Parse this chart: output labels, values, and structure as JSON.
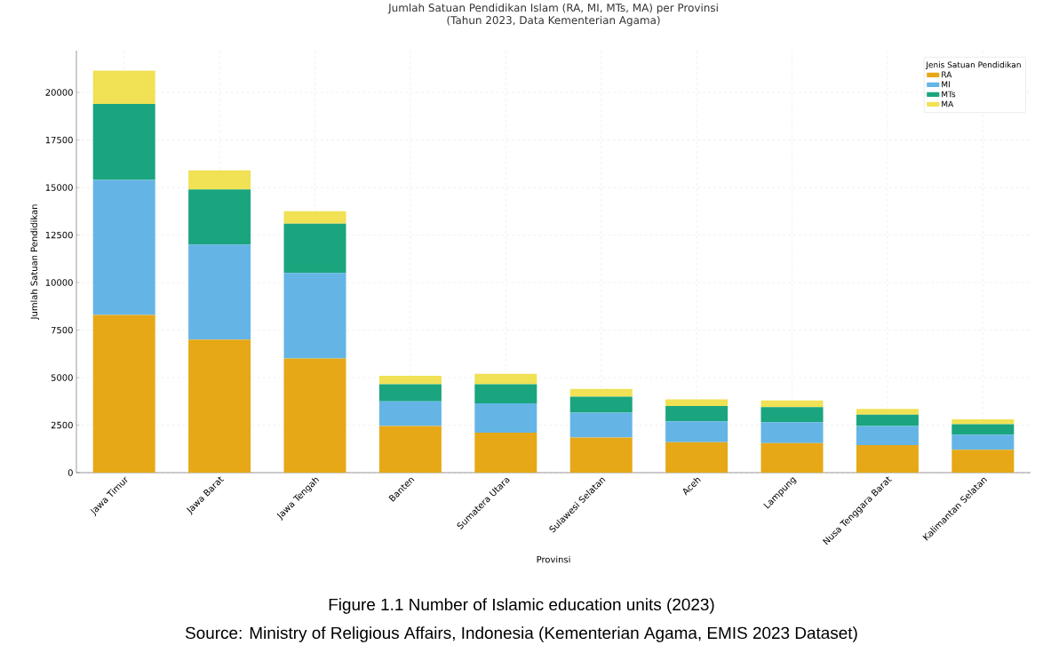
{
  "chart_data": {
    "type": "bar",
    "stacked": true,
    "title": "Jumlah Satuan Pendidikan Islam (RA, MI, MTs, MA) per Provinsi",
    "subtitle": "(Tahun 2023, Data Kementerian Agama)",
    "xlabel": "Provinsi",
    "ylabel": "Jumlah Satuan Pendidikan",
    "legend_title": "Jenis Satuan Pendidikan",
    "categories": [
      "Jawa Timur",
      "Jawa Barat",
      "Jawa Tengah",
      "Banten",
      "Sumatera Utara",
      "Sulawesi Selatan",
      "Aceh",
      "Lampung",
      "Nusa Tenggara Barat",
      "Kalimantan Selatan"
    ],
    "series": [
      {
        "name": "RA",
        "color": "#e6a817",
        "values": [
          8300,
          7000,
          6000,
          2450,
          2100,
          1850,
          1600,
          1550,
          1450,
          1200
        ]
      },
      {
        "name": "MI",
        "color": "#64b5e6",
        "values": [
          7100,
          5000,
          4500,
          1300,
          1550,
          1300,
          1100,
          1100,
          1000,
          800
        ]
      },
      {
        "name": "MTs",
        "color": "#1aa57e",
        "values": [
          4000,
          2900,
          2600,
          900,
          1000,
          850,
          800,
          800,
          600,
          550
        ]
      },
      {
        "name": "MA",
        "color": "#f0e155",
        "values": [
          1750,
          1000,
          650,
          450,
          550,
          400,
          350,
          350,
          300,
          250
        ]
      }
    ],
    "ylim": [
      0,
      22200
    ],
    "yticks": [
      0,
      2500,
      5000,
      7500,
      10000,
      12500,
      15000,
      17500,
      20000
    ],
    "grid": true,
    "legend": "top right",
    "annotations": [
      "Figure 1.1 Number of Islamic education units (2023)",
      "Source: Ministry of Religious Affairs, Indonesia (Kementerian Agama, EMIS 2023 Dataset)"
    ]
  }
}
